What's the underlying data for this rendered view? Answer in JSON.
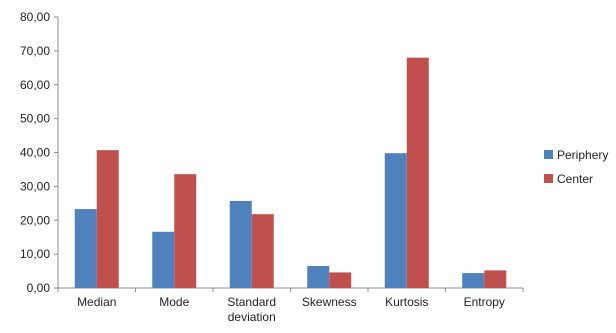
{
  "chart_data": {
    "type": "bar",
    "title": "",
    "xlabel": "",
    "ylabel": "",
    "categories": [
      [
        "Median"
      ],
      [
        "Mode"
      ],
      [
        "Standard",
        "deviation"
      ],
      [
        "Skewness"
      ],
      [
        "Kurtosis"
      ],
      [
        "Entropy"
      ]
    ],
    "series": [
      {
        "name": "Periphery",
        "color": "#4F81BD",
        "values": [
          23.3,
          16.6,
          25.7,
          6.5,
          39.8,
          4.4
        ]
      },
      {
        "name": "Center",
        "color": "#C0504D",
        "values": [
          40.7,
          33.6,
          21.8,
          4.6,
          68.0,
          5.2
        ]
      }
    ],
    "ylim": [
      0,
      80
    ],
    "yticks": [
      "0,00",
      "10,00",
      "20,00",
      "30,00",
      "40,00",
      "50,00",
      "60,00",
      "70,00",
      "80,00"
    ],
    "grid": false,
    "legend_position": "right"
  }
}
